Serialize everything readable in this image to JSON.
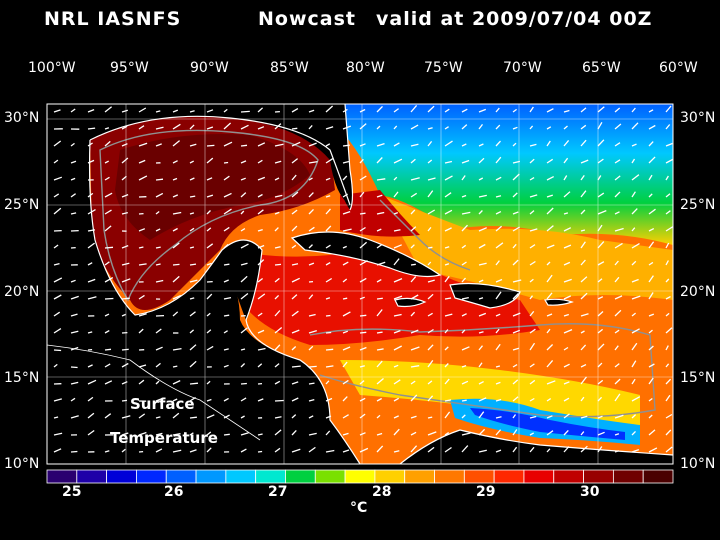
{
  "header": {
    "model": "NRL IASNFS",
    "product": "Nowcast",
    "valid_time": "valid at 2009/07/04 00Z"
  },
  "map": {
    "label_line1": "Surface",
    "label_line2": "Temperature",
    "lon_ticks": [
      "100°W",
      "95°W",
      "90°W",
      "85°W",
      "80°W",
      "75°W",
      "70°W",
      "65°W",
      "60°W"
    ],
    "lat_ticks": [
      "30°N",
      "25°N",
      "20°N",
      "15°N",
      "10°N"
    ]
  },
  "colorbar": {
    "unit": "°C",
    "labels": [
      "25",
      "26",
      "27",
      "28",
      "29",
      "30"
    ],
    "colors": [
      "#2a0070",
      "#1e00a8",
      "#0000d8",
      "#0028ff",
      "#0060ff",
      "#0098ff",
      "#00c8ff",
      "#00e8d0",
      "#00d040",
      "#7ae000",
      "#ffff00",
      "#ffd000",
      "#ffa000",
      "#ff7800",
      "#ff5000",
      "#ff2800",
      "#e80000",
      "#c00000",
      "#980000",
      "#700000",
      "#4a0000"
    ]
  }
}
